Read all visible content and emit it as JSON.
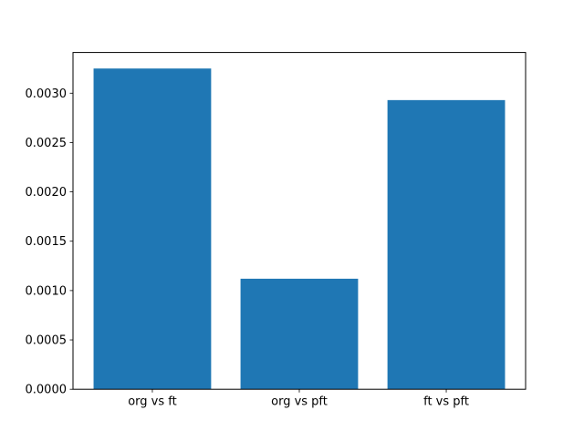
{
  "chart_data": {
    "type": "bar",
    "categories": [
      "org vs ft",
      "org vs pft",
      "ft vs pft"
    ],
    "values": [
      0.00325,
      0.00112,
      0.00293
    ],
    "title": "",
    "xlabel": "",
    "ylabel": "",
    "ylim": [
      0,
      0.0034125
    ],
    "yticks": [
      0.0,
      0.0005,
      0.001,
      0.0015,
      0.002,
      0.0025,
      0.003
    ],
    "ytick_labels": [
      "0.0000",
      "0.0005",
      "0.0010",
      "0.0015",
      "0.0020",
      "0.0025",
      "0.0030"
    ],
    "bar_color": "#1f77b4",
    "background_color": "#ffffff",
    "axes_edge_color": "#000000",
    "grid": false,
    "legend": null
  }
}
